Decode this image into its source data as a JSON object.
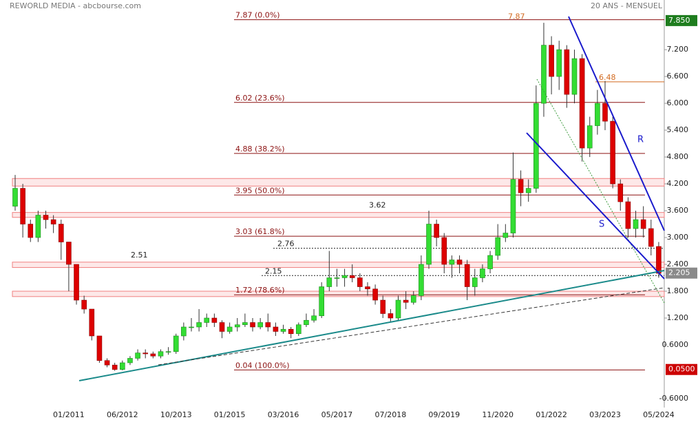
{
  "chart_data": {
    "type": "candlestick",
    "title": "REWORLD MEDIA - abcbourse.com",
    "subtitle": "20 ANS - MENSUEL",
    "categories": [
      null,
      null,
      null,
      null,
      null,
      null,
      null,
      "01/2011",
      null,
      null,
      null,
      null,
      null,
      null,
      "06/2012",
      null,
      null,
      null,
      null,
      null,
      null,
      "10/2013",
      null,
      null,
      null,
      null,
      null,
      null,
      "01/2015",
      null,
      null,
      null,
      null,
      null,
      null,
      "03/2016",
      null,
      null,
      null,
      null,
      null,
      null,
      "05/2017",
      null,
      null,
      null,
      null,
      null,
      null,
      "07/2018",
      null,
      null,
      null,
      null,
      null,
      null,
      "09/2019",
      null,
      null,
      null,
      null,
      null,
      null,
      "11/2020",
      null,
      null,
      null,
      null,
      null,
      null,
      "01/2022",
      null,
      null,
      null,
      null,
      null,
      null,
      "03/2023",
      null,
      null,
      null,
      null,
      null,
      null,
      "05/2024"
    ],
    "open": [
      3.7,
      4.1,
      3.3,
      3.0,
      3.5,
      3.4,
      3.3,
      2.9,
      2.4,
      1.6,
      1.4,
      0.8,
      0.25,
      0.15,
      0.05,
      0.2,
      0.3,
      0.42,
      0.4,
      0.35,
      0.45,
      0.45,
      0.8,
      1.0,
      1.0,
      1.1,
      1.2,
      1.1,
      0.9,
      1.0,
      1.05,
      1.1,
      1.0,
      1.1,
      1.0,
      0.9,
      0.95,
      0.85,
      1.05,
      1.15,
      1.25,
      1.9,
      2.1,
      2.1,
      2.15,
      2.1,
      1.9,
      1.85,
      1.6,
      1.3,
      1.2,
      1.6,
      1.55,
      1.7,
      2.4,
      3.3,
      3.0,
      2.4,
      2.5,
      2.4,
      1.9,
      2.1,
      2.3,
      2.6,
      3.0,
      3.1,
      4.3,
      4.0,
      4.1,
      6.0,
      7.3,
      6.6,
      7.2,
      6.2,
      7.0,
      5.0,
      5.5,
      6.0,
      5.6,
      4.2,
      3.8,
      3.2,
      3.4,
      3.2,
      2.8
    ],
    "high": [
      4.4,
      4.2,
      3.4,
      3.6,
      3.6,
      3.5,
      3.4,
      2.9,
      2.4,
      1.7,
      1.4,
      0.8,
      0.3,
      0.2,
      0.25,
      0.35,
      0.5,
      0.5,
      0.45,
      0.5,
      0.55,
      0.85,
      1.1,
      1.2,
      1.4,
      1.3,
      1.3,
      1.15,
      1.1,
      1.2,
      1.3,
      1.2,
      1.2,
      1.3,
      1.1,
      1.05,
      1.0,
      1.1,
      1.3,
      1.4,
      2.0,
      2.7,
      2.3,
      2.3,
      2.4,
      2.2,
      2.0,
      1.95,
      1.7,
      1.4,
      1.7,
      1.8,
      1.8,
      2.6,
      3.6,
      3.4,
      3.1,
      2.6,
      2.6,
      2.5,
      2.3,
      2.4,
      2.7,
      3.3,
      3.3,
      4.9,
      4.5,
      4.3,
      6.4,
      7.8,
      7.5,
      7.4,
      7.3,
      7.2,
      7.1,
      5.7,
      6.3,
      6.5,
      5.7,
      4.3,
      3.9,
      3.6,
      3.7,
      3.4,
      2.9
    ],
    "low": [
      3.6,
      3.0,
      2.9,
      2.9,
      3.2,
      3.1,
      2.5,
      1.8,
      1.5,
      1.3,
      0.7,
      0.2,
      0.1,
      0.02,
      0.03,
      0.15,
      0.25,
      0.3,
      0.3,
      0.3,
      0.38,
      0.4,
      0.7,
      0.9,
      0.9,
      1.0,
      1.0,
      0.75,
      0.85,
      0.9,
      1.0,
      0.9,
      0.95,
      0.9,
      0.8,
      0.85,
      0.75,
      0.8,
      1.0,
      1.1,
      1.2,
      1.8,
      1.9,
      1.9,
      2.0,
      1.8,
      1.7,
      1.5,
      1.2,
      1.1,
      1.15,
      1.4,
      1.5,
      1.6,
      2.3,
      2.8,
      2.2,
      2.1,
      2.2,
      1.6,
      1.7,
      2.0,
      2.2,
      2.5,
      2.9,
      3.0,
      3.7,
      3.8,
      4.0,
      5.7,
      6.2,
      6.3,
      5.9,
      6.0,
      4.7,
      4.8,
      5.3,
      5.4,
      4.1,
      3.6,
      3.0,
      3.0,
      3.0,
      2.6,
      2.1
    ],
    "close": [
      4.1,
      3.3,
      3.0,
      3.5,
      3.4,
      3.3,
      2.9,
      2.4,
      1.6,
      1.4,
      0.8,
      0.25,
      0.15,
      0.05,
      0.2,
      0.3,
      0.42,
      0.4,
      0.35,
      0.45,
      0.45,
      0.8,
      1.0,
      1.0,
      1.1,
      1.2,
      1.1,
      0.9,
      1.0,
      1.05,
      1.1,
      1.0,
      1.1,
      1.0,
      0.9,
      0.95,
      0.85,
      1.05,
      1.15,
      1.25,
      1.9,
      2.1,
      2.1,
      2.15,
      2.1,
      1.9,
      1.85,
      1.6,
      1.3,
      1.2,
      1.6,
      1.55,
      1.7,
      2.4,
      3.3,
      3.0,
      2.4,
      2.5,
      2.4,
      1.9,
      2.1,
      2.3,
      2.6,
      3.0,
      3.1,
      4.3,
      4.0,
      4.1,
      6.0,
      7.3,
      6.6,
      7.2,
      6.2,
      7.0,
      5.0,
      5.5,
      6.0,
      5.6,
      4.2,
      3.8,
      3.2,
      3.4,
      3.2,
      2.8,
      2.2
    ],
    "up_color": "#33dd33",
    "down_color": "#dd0000",
    "ylim": [
      -0.77,
      8.31
    ],
    "yticks": [
      {
        "value": 7.2,
        "label": "7.200"
      },
      {
        "value": 6.6,
        "label": "6.600"
      },
      {
        "value": 6,
        "label": "6.000"
      },
      {
        "value": 5.4,
        "label": "5.400"
      },
      {
        "value": 4.8,
        "label": "4.800"
      },
      {
        "value": 4.2,
        "label": "4.200"
      },
      {
        "value": 3.6,
        "label": "3.600"
      },
      {
        "value": 3,
        "label": "3.000"
      },
      {
        "value": 2.4,
        "label": "2.400"
      },
      {
        "value": 1.8,
        "label": "1.800"
      },
      {
        "value": 1.2,
        "label": "1.200"
      },
      {
        "value": 0.6,
        "label": "0.6000"
      },
      {
        "value": -0.6,
        "label": "-0.6000"
      }
    ],
    "fib_levels": [
      {
        "value": 7.87,
        "label": "7.87  (0.0%)"
      },
      {
        "value": 6.02,
        "label": "6.02  (23.6%)"
      },
      {
        "value": 4.88,
        "label": "4.88  (38.2%)"
      },
      {
        "value": 3.95,
        "label": "3.95  (50.0%)"
      },
      {
        "value": 3.03,
        "label": "3.03  (61.8%)"
      },
      {
        "value": 1.72,
        "label": "1.72  (78.6%)"
      },
      {
        "value": 0.04,
        "label": "0.04  (100.0%)"
      }
    ],
    "fib_color": "#8b1010",
    "peak_label": 7.87,
    "resistance": 6.48,
    "annotation_color": "#d2691e",
    "price_levels": [
      {
        "value": 3.62,
        "dotted_line": false
      },
      {
        "value": 2.76,
        "dotted_line": true
      },
      {
        "value": 2.51,
        "dotted_line": false
      },
      {
        "value": 2.15,
        "dotted_line": true
      }
    ],
    "zones": [
      [
        4.15,
        4.32
      ],
      [
        3.45,
        3.56
      ],
      [
        2.33,
        2.45
      ],
      [
        1.68,
        1.8
      ]
    ],
    "price_markers": [
      {
        "value": 7.85,
        "label": "7.850",
        "color": "#1e7d1e"
      },
      {
        "value": 2.205,
        "label": "2.205",
        "color": "#8a8a8a"
      },
      {
        "value": 0.05,
        "label": "0.0500",
        "color": "#cc0000"
      }
    ],
    "trend_labels": [
      "R",
      "S"
    ]
  }
}
